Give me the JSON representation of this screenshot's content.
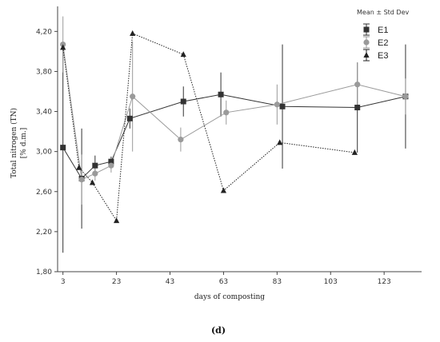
{
  "chart_data": {
    "type": "line",
    "xlabel": "days of composting",
    "ylabel_lines": [
      "Total nitrogen (TN)",
      "[% d.m.]"
    ],
    "xlim": [
      1,
      137
    ],
    "ylim": [
      1.8,
      4.45
    ],
    "xticks": [
      3,
      23,
      43,
      63,
      83,
      103,
      123
    ],
    "yticks": [
      1.8,
      2.2,
      2.6,
      3.0,
      3.4,
      3.8,
      4.2
    ],
    "ytick_labels": [
      "1,80",
      "2,20",
      "2,60",
      "3,00",
      "3,40",
      "3,80",
      "4,20"
    ],
    "grid": false,
    "legend": {
      "title": "Mean ± Std Dev",
      "placement": "top-right"
    },
    "caption": "(d)",
    "series": [
      {
        "name": "E1",
        "marker": "square",
        "line_style": "solid",
        "color": "#333333",
        "x": [
          3,
          10,
          15,
          21,
          28,
          48,
          62,
          85,
          113,
          131
        ],
        "y": [
          3.04,
          2.73,
          2.86,
          2.9,
          3.33,
          3.5,
          3.57,
          3.45,
          3.44,
          3.55
        ],
        "err": [
          1.05,
          0.5,
          0.1,
          0.05,
          0.1,
          0.15,
          0.22,
          0.62,
          0.45,
          0.52
        ]
      },
      {
        "name": "E2",
        "marker": "circle",
        "line_style": "solid",
        "color": "#9a9a9a",
        "x": [
          3,
          10,
          15,
          21,
          29,
          47,
          64,
          83,
          113,
          131
        ],
        "y": [
          4.07,
          2.72,
          2.78,
          2.86,
          3.55,
          3.12,
          3.39,
          3.47,
          3.67,
          3.55
        ],
        "err": [
          0.28,
          0.25,
          0.07,
          0.07,
          0.55,
          0.12,
          0.12,
          0.2,
          0.22,
          0.18
        ]
      },
      {
        "name": "E3",
        "marker": "triangle",
        "line_style": "dotted",
        "color": "#222222",
        "x": [
          3,
          9,
          14,
          23,
          29,
          48,
          63,
          84,
          112
        ],
        "y": [
          4.04,
          2.84,
          2.69,
          2.31,
          4.18,
          3.97,
          2.61,
          3.09,
          2.99
        ],
        "err": [
          0,
          0,
          0,
          0,
          0,
          0,
          0,
          0,
          0
        ]
      }
    ]
  }
}
